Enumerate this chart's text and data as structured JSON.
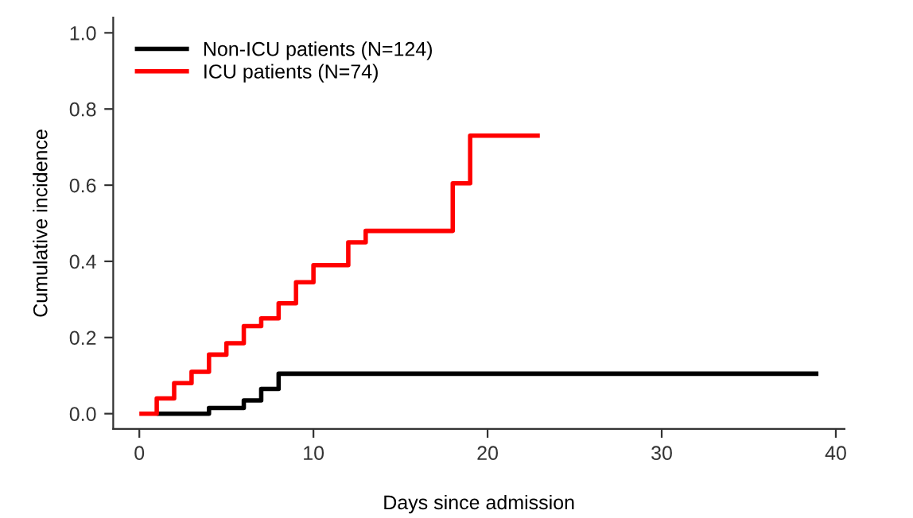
{
  "chart_data": {
    "type": "step",
    "xlabel": "Days since admission",
    "ylabel": "Cumulative incidence",
    "series": [
      {
        "name": "Non-ICU patients (N=124)",
        "color": "#000000",
        "x": [
          1,
          4,
          6,
          7,
          8,
          39
        ],
        "values": [
          0,
          0.015,
          0.035,
          0.065,
          0.105,
          0.105
        ]
      },
      {
        "name": "ICU patients (N=74)",
        "color": "#ff0000",
        "x": [
          0,
          1,
          2,
          3,
          4,
          5,
          6,
          7,
          8,
          9,
          10,
          12,
          13,
          18,
          19,
          23
        ],
        "values": [
          0,
          0.04,
          0.08,
          0.11,
          0.155,
          0.185,
          0.23,
          0.25,
          0.29,
          0.345,
          0.39,
          0.45,
          0.48,
          0.605,
          0.73,
          0.73
        ]
      }
    ],
    "xlim": [
      -1.5,
      40.5
    ],
    "xticks": [
      0,
      10,
      20,
      30,
      40
    ],
    "ylim": [
      -0.04,
      1.04
    ],
    "yticks": [
      {
        "value": 0,
        "label": "0.0"
      },
      {
        "value": 0.2,
        "label": "0.2"
      },
      {
        "value": 0.4,
        "label": "0.4"
      },
      {
        "value": 0.6,
        "label": "0.6"
      },
      {
        "value": 0.8,
        "label": "0.8"
      },
      {
        "value": 1,
        "label": "1.0"
      }
    ],
    "grid": false,
    "legend": "top left",
    "line_style": "solid",
    "marker": "none"
  }
}
